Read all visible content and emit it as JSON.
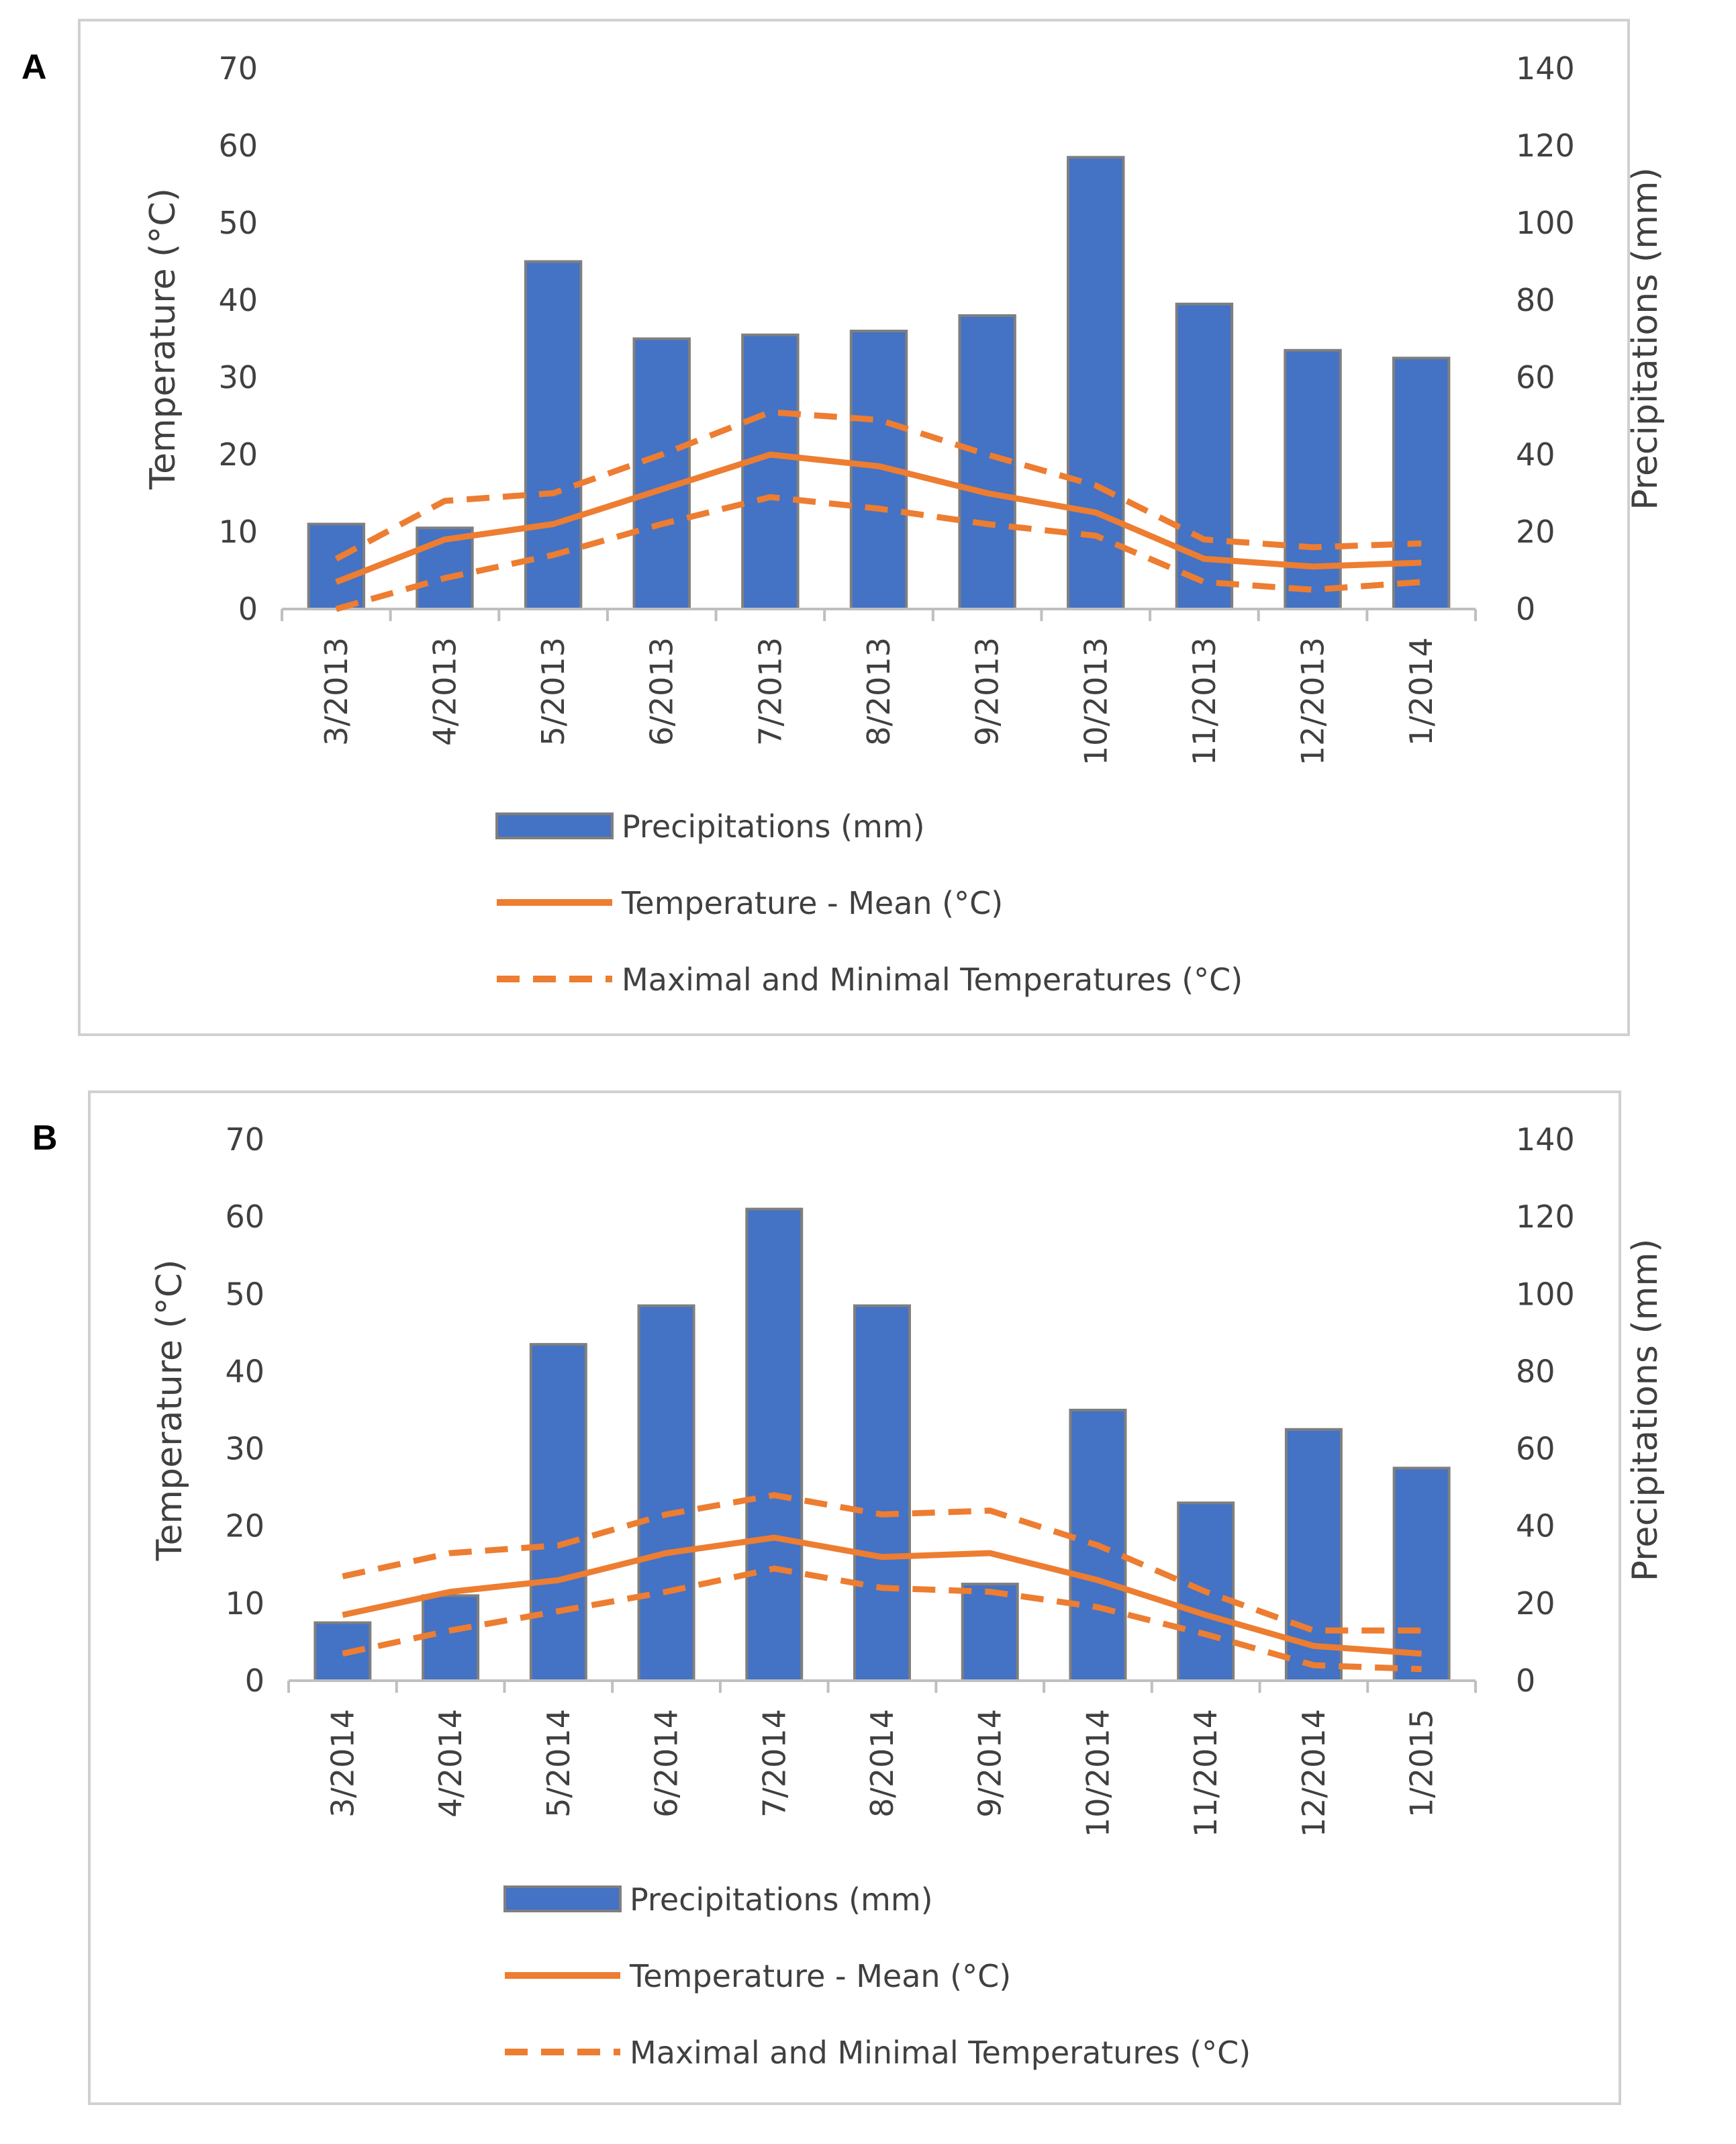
{
  "panels": [
    {
      "letter": "A"
    },
    {
      "letter": "B"
    }
  ],
  "colors": {
    "bar_fill": "#4472C4",
    "bar_stroke": "#7f7f7f",
    "line": "#ED7D31",
    "axis": "#bfbfbf",
    "text": "#404040",
    "frame": "#d0d0d0"
  },
  "chart_data": [
    {
      "type": "bar+line",
      "panel": "A",
      "categories": [
        "3/2013",
        "4/2013",
        "5/2013",
        "6/2013",
        "7/2013",
        "8/2013",
        "9/2013",
        "10/2013",
        "11/2013",
        "12/2013",
        "1/2014"
      ],
      "ylabel_left": "Temperature (°C)",
      "ylabel_right": "Precipitations (mm)",
      "ylim_left": [
        0,
        70
      ],
      "ylim_right": [
        0,
        140
      ],
      "yticks_left": [
        0,
        10,
        20,
        30,
        40,
        50,
        60,
        70
      ],
      "yticks_right": [
        0,
        20,
        40,
        60,
        80,
        100,
        120,
        140
      ],
      "series": [
        {
          "name": "Precipitations (mm)",
          "type": "bar",
          "axis": "right",
          "values": [
            22,
            21,
            90,
            70,
            71,
            72,
            76,
            117,
            79,
            67,
            65
          ]
        },
        {
          "name": "Temperature - Mean (°C)",
          "type": "line",
          "axis": "left",
          "values": [
            3.5,
            9,
            11,
            15.5,
            20,
            18.5,
            15,
            12.5,
            6.5,
            5.5,
            6
          ]
        },
        {
          "name": "Maximal Temperature (°C)",
          "type": "dashed-line",
          "axis": "left",
          "values": [
            6.5,
            14,
            15,
            20,
            25.5,
            24.5,
            20,
            16,
            9,
            8,
            8.5
          ]
        },
        {
          "name": "Minimal Temperature (°C)",
          "type": "dashed-line",
          "axis": "left",
          "values": [
            0,
            4,
            7,
            11,
            14.5,
            13,
            11,
            9.5,
            3.5,
            2.5,
            3.5
          ]
        }
      ],
      "legend": [
        "Precipitations (mm)",
        "Temperature - Mean (°C)",
        "Maximal and Minimal Temperatures (°C)"
      ]
    },
    {
      "type": "bar+line",
      "panel": "B",
      "categories": [
        "3/2014",
        "4/2014",
        "5/2014",
        "6/2014",
        "7/2014",
        "8/2014",
        "9/2014",
        "10/2014",
        "11/2014",
        "12/2014",
        "1/2015"
      ],
      "ylabel_left": "Temperature (°C)",
      "ylabel_right": "Precipitations (mm)",
      "ylim_left": [
        0,
        70
      ],
      "ylim_right": [
        0,
        140
      ],
      "yticks_left": [
        0,
        10,
        20,
        30,
        40,
        50,
        60,
        70
      ],
      "yticks_right": [
        0,
        20,
        40,
        60,
        80,
        100,
        120,
        140
      ],
      "series": [
        {
          "name": "Precipitations (mm)",
          "type": "bar",
          "axis": "right",
          "values": [
            15,
            22,
            87,
            97,
            122,
            97,
            25,
            70,
            46,
            65,
            55
          ]
        },
        {
          "name": "Temperature - Mean (°C)",
          "type": "line",
          "axis": "left",
          "values": [
            8.5,
            11.5,
            13,
            16.5,
            18.5,
            16,
            16.5,
            13,
            8.5,
            4.5,
            3.5
          ]
        },
        {
          "name": "Maximal Temperature (°C)",
          "type": "dashed-line",
          "axis": "left",
          "values": [
            13.5,
            16.5,
            17.5,
            21.5,
            24,
            21.5,
            22,
            17.5,
            11.5,
            6.5,
            6.5
          ]
        },
        {
          "name": "Minimal Temperature (°C)",
          "type": "dashed-line",
          "axis": "left",
          "values": [
            3.5,
            6.5,
            9,
            11.5,
            14.5,
            12,
            11.5,
            9.5,
            6,
            2,
            1.5
          ]
        }
      ],
      "legend": [
        "Precipitations (mm)",
        "Temperature - Mean (°C)",
        "Maximal and Minimal Temperatures (°C)"
      ]
    }
  ]
}
